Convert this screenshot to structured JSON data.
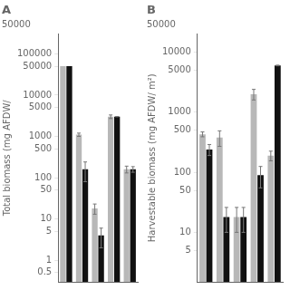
{
  "chart_data": [
    {
      "type": "bar",
      "title": "A",
      "annotation": "50000",
      "ylabel": "Total biomass (mg AFDW/",
      "categories": [
        null,
        null,
        null,
        null,
        null
      ],
      "series": [
        {
          "color": "#b8b8b8",
          "values": [
            50000,
            1100,
            18,
            3000,
            160
          ],
          "errors": [
            null,
            100,
            5,
            300,
            30
          ]
        },
        {
          "color": "#111111",
          "values": [
            50000,
            160,
            4,
            3000,
            160
          ],
          "errors": [
            null,
            80,
            2,
            0,
            25
          ]
        }
      ],
      "ylim": [
        0.3,
        300000
      ],
      "yticks": [
        0.5,
        1,
        5,
        10,
        50,
        100,
        500,
        1000,
        5000,
        10000,
        50000,
        100000
      ],
      "log": "y",
      "grid": false,
      "tick_labels": "y"
    },
    {
      "type": "bar",
      "title": "B",
      "annotation": "50000",
      "ylabel": "Harvestable biomass (mg AFDW/ m²)",
      "categories": [
        null,
        null,
        null,
        null,
        null
      ],
      "series": [
        {
          "color": "#b8b8b8",
          "values": [
            430,
            380,
            18,
            2000,
            190
          ],
          "errors": [
            40,
            110,
            8,
            400,
            35
          ]
        },
        {
          "color": "#111111",
          "values": [
            240,
            18,
            18,
            90,
            6000
          ],
          "errors": [
            50,
            8,
            8,
            35,
            80
          ]
        }
      ],
      "ylim": [
        1.5,
        20000
      ],
      "yticks": [
        5,
        10,
        50,
        100,
        500,
        1000,
        5000,
        10000
      ],
      "log": "y",
      "grid": false,
      "tick_labels": "y"
    }
  ]
}
